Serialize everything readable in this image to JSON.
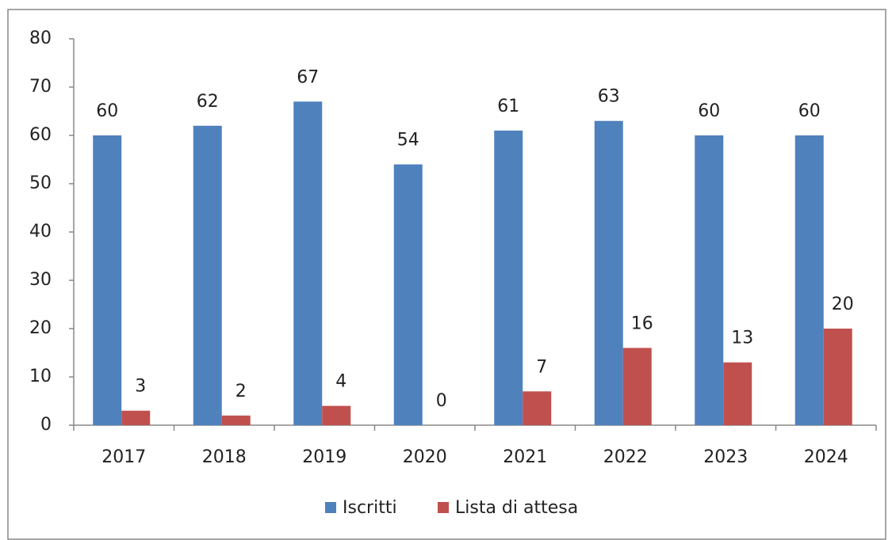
{
  "chart_data": {
    "type": "bar",
    "categories": [
      "2017",
      "2018",
      "2019",
      "2020",
      "2021",
      "2022",
      "2023",
      "2024"
    ],
    "series": [
      {
        "name": "Iscritti",
        "color": "#4f81bd",
        "values": [
          60,
          62,
          67,
          54,
          61,
          63,
          60,
          60
        ]
      },
      {
        "name": "Lista di attesa",
        "color": "#c0504d",
        "values": [
          3,
          2,
          4,
          0,
          7,
          16,
          13,
          20
        ]
      }
    ],
    "ylim": [
      0,
      80
    ],
    "yticks": [
      0,
      10,
      20,
      30,
      40,
      50,
      60,
      70,
      80
    ],
    "grid": false,
    "legend": "bottom"
  }
}
